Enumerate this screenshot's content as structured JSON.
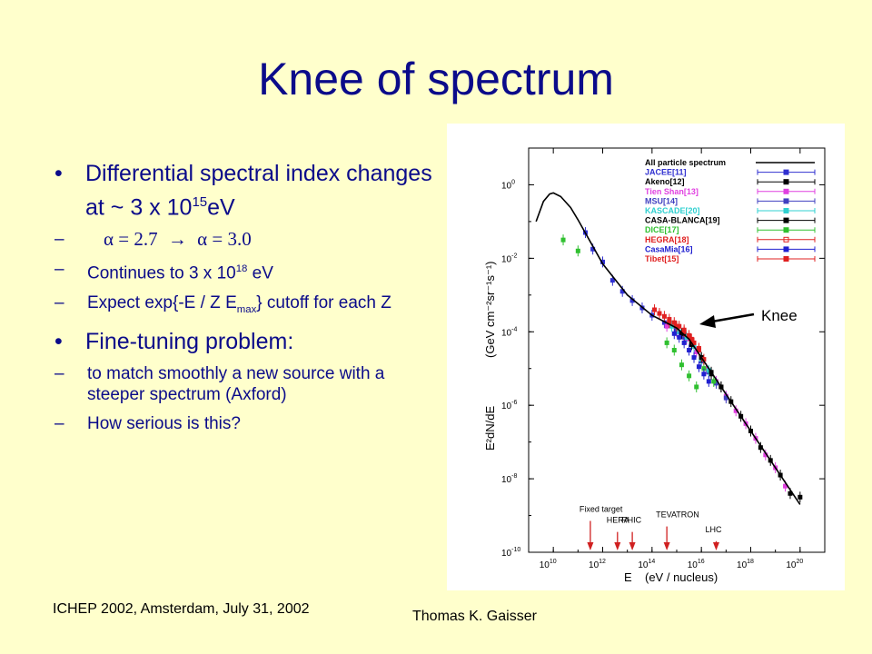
{
  "slide": {
    "title": "Knee of spectrum",
    "bullet1": {
      "text": "Differential spectral index changes at ~ 3 x 10",
      "sup": "15",
      "unit": "eV"
    },
    "sub1": {
      "alpha_from": "α = 2.7",
      "arrow": "→",
      "alpha_to": "α = 3.0"
    },
    "sub2": {
      "pre": "Continues to 3 x 10",
      "sup": "18",
      "post": " eV"
    },
    "sub3": {
      "pre": "Expect exp{-E / Z E",
      "sub": "max",
      "post": "} cutoff for each Z"
    },
    "bullet2": "Fine-tuning problem:",
    "sub4": " to match smoothly a new source with a steeper spectrum (Axford)",
    "sub5": "How serious is this?",
    "bullet_glyph": "•",
    "dash_glyph": "–",
    "footer_left": "ICHEP 2002, Amsterdam, July 31, 2002",
    "footer_right": "Thomas K. Gaisser",
    "knee_label": "Knee"
  },
  "chart_data": {
    "type": "scatter",
    "xlabel": "E",
    "xlabel_unit": "(eV / nucleus)",
    "ylabel": "E²dN/dE",
    "ylabel_unit": "(GeV cm⁻²sr⁻¹s⁻¹)",
    "x_log": true,
    "y_log": true,
    "xlim_exp": [
      9,
      21
    ],
    "ylim_exp": [
      -10,
      1
    ],
    "x_ticks": [
      {
        "exp": 10,
        "label": "10",
        "sup": "10"
      },
      {
        "exp": 12,
        "label": "10",
        "sup": "12"
      },
      {
        "exp": 14,
        "label": "10",
        "sup": "14"
      },
      {
        "exp": 16,
        "label": "10",
        "sup": "16"
      },
      {
        "exp": 18,
        "label": "10",
        "sup": "18"
      },
      {
        "exp": 20,
        "label": "10",
        "sup": "20"
      }
    ],
    "y_ticks": [
      {
        "exp": 0,
        "label": "10",
        "sup": "0"
      },
      {
        "exp": -2,
        "label": "10",
        "sup": "-2"
      },
      {
        "exp": -4,
        "label": "10",
        "sup": "-4"
      },
      {
        "exp": -6,
        "label": "10",
        "sup": "-6"
      },
      {
        "exp": -8,
        "label": "10",
        "sup": "-8"
      },
      {
        "exp": -10,
        "label": "10",
        "sup": "-10"
      }
    ],
    "all_particle_curve": [
      [
        9.3,
        -1.0
      ],
      [
        9.6,
        -0.45
      ],
      [
        9.85,
        -0.25
      ],
      [
        10.0,
        -0.22
      ],
      [
        10.3,
        -0.32
      ],
      [
        10.7,
        -0.62
      ],
      [
        11.0,
        -0.95
      ],
      [
        11.5,
        -1.55
      ],
      [
        12.0,
        -2.15
      ],
      [
        13.0,
        -3.0
      ],
      [
        14.0,
        -3.55
      ],
      [
        15.0,
        -3.9
      ],
      [
        15.5,
        -4.2
      ],
      [
        16.0,
        -4.7
      ],
      [
        16.5,
        -5.2
      ],
      [
        17.0,
        -5.7
      ],
      [
        18.0,
        -6.7
      ],
      [
        19.0,
        -7.7
      ],
      [
        20.0,
        -8.7
      ]
    ],
    "legend": [
      {
        "name": "All particle spectrum",
        "color": "#000000",
        "marker": "line"
      },
      {
        "name": "JACEE[11]",
        "color": "#3030d0",
        "marker": "x"
      },
      {
        "name": "Akeno[12]",
        "color": "#000000",
        "marker": "tri"
      },
      {
        "name": "Tien Shan[13]",
        "color": "#e040e0",
        "marker": "star"
      },
      {
        "name": "MSU[14]",
        "color": "#4040c0",
        "marker": "star"
      },
      {
        "name": "KASCADE[20]",
        "color": "#30d0d0",
        "marker": "star"
      },
      {
        "name": "CASA-BLANCA[19]",
        "color": "#000000",
        "marker": "square"
      },
      {
        "name": "DICE[17]",
        "color": "#30c030",
        "marker": "dot"
      },
      {
        "name": "HEGRA[18]",
        "color": "#e02020",
        "marker": "opensquare"
      },
      {
        "name": "CasaMia[16]",
        "color": "#2020d0",
        "marker": "dot"
      },
      {
        "name": "Tibet[15]",
        "color": "#e02020",
        "marker": "square"
      }
    ],
    "series": [
      {
        "name": "JACEE[11]",
        "color": "#3030d0",
        "points": [
          [
            11.3,
            -1.3
          ],
          [
            11.6,
            -1.75
          ],
          [
            12.0,
            -2.1
          ],
          [
            12.4,
            -2.6
          ],
          [
            12.8,
            -2.9
          ],
          [
            13.2,
            -3.15
          ],
          [
            13.6,
            -3.35
          ],
          [
            14.0,
            -3.55
          ],
          [
            14.5,
            -3.75
          ],
          [
            15.0,
            -3.95
          ]
        ]
      },
      {
        "name": "Akeno[12]",
        "color": "#000000",
        "points": [
          [
            15.3,
            -4.1
          ],
          [
            15.6,
            -4.3
          ],
          [
            16.0,
            -4.7
          ],
          [
            16.4,
            -5.15
          ],
          [
            16.8,
            -5.5
          ],
          [
            17.2,
            -5.9
          ],
          [
            17.6,
            -6.3
          ],
          [
            18.0,
            -6.7
          ],
          [
            18.4,
            -7.15
          ],
          [
            18.8,
            -7.5
          ],
          [
            19.2,
            -7.9
          ],
          [
            19.6,
            -8.4
          ],
          [
            20.0,
            -8.5
          ]
        ]
      },
      {
        "name": "Tien Shan[13]",
        "color": "#e040e0",
        "points": [
          [
            14.6,
            -3.85
          ],
          [
            15.0,
            -4.0
          ],
          [
            15.4,
            -4.2
          ],
          [
            15.8,
            -4.55
          ],
          [
            16.2,
            -5.0
          ],
          [
            16.6,
            -5.35
          ],
          [
            17.0,
            -5.75
          ],
          [
            17.4,
            -6.15
          ],
          [
            17.8,
            -6.5
          ],
          [
            18.2,
            -6.9
          ],
          [
            18.6,
            -7.35
          ],
          [
            19.0,
            -7.7
          ],
          [
            19.4,
            -8.2
          ]
        ]
      },
      {
        "name": "MSU[14]",
        "color": "#4040c0",
        "points": [
          [
            15.0,
            -3.95
          ],
          [
            15.3,
            -4.15
          ],
          [
            15.6,
            -4.35
          ],
          [
            16.0,
            -4.8
          ],
          [
            16.3,
            -5.1
          ],
          [
            16.6,
            -5.4
          ],
          [
            17.0,
            -5.8
          ]
        ]
      },
      {
        "name": "KASCADE[20]",
        "color": "#30d0d0",
        "points": [
          [
            14.8,
            -3.85
          ],
          [
            15.1,
            -4.0
          ],
          [
            15.4,
            -4.15
          ],
          [
            15.7,
            -4.4
          ],
          [
            16.0,
            -4.75
          ],
          [
            16.3,
            -5.05
          ]
        ]
      },
      {
        "name": "CASA-BLANCA[19]",
        "color": "#000000",
        "points": [
          [
            15.2,
            -4.05
          ],
          [
            15.6,
            -4.35
          ],
          [
            16.0,
            -4.7
          ],
          [
            16.4,
            -5.1
          ],
          [
            16.8,
            -5.5
          ]
        ]
      },
      {
        "name": "DICE[17]",
        "color": "#30c030",
        "points": [
          [
            10.4,
            -1.5
          ],
          [
            11.0,
            -1.8
          ],
          [
            14.6,
            -4.3
          ],
          [
            14.9,
            -4.5
          ],
          [
            15.2,
            -4.9
          ],
          [
            15.5,
            -5.2
          ],
          [
            15.8,
            -5.5
          ],
          [
            16.1,
            -5.0
          ],
          [
            16.5,
            -5.35
          ]
        ]
      },
      {
        "name": "HEGRA[18]",
        "color": "#e02020",
        "points": [
          [
            14.7,
            -3.75
          ],
          [
            15.0,
            -3.85
          ],
          [
            15.3,
            -4.0
          ],
          [
            15.6,
            -4.2
          ],
          [
            15.9,
            -4.45
          ]
        ]
      },
      {
        "name": "CasaMia[16]",
        "color": "#2020d0",
        "points": [
          [
            14.9,
            -4.05
          ],
          [
            15.1,
            -4.15
          ],
          [
            15.3,
            -4.3
          ],
          [
            15.5,
            -4.5
          ],
          [
            15.7,
            -4.7
          ],
          [
            15.9,
            -4.95
          ],
          [
            16.1,
            -5.15
          ],
          [
            16.3,
            -5.35
          ]
        ]
      },
      {
        "name": "Tibet[15]",
        "color": "#e02020",
        "points": [
          [
            14.1,
            -3.4
          ],
          [
            14.3,
            -3.5
          ],
          [
            14.5,
            -3.58
          ],
          [
            14.7,
            -3.66
          ],
          [
            14.9,
            -3.75
          ],
          [
            15.1,
            -3.85
          ],
          [
            15.3,
            -3.95
          ],
          [
            15.5,
            -4.1
          ],
          [
            15.7,
            -4.3
          ],
          [
            15.9,
            -4.5
          ],
          [
            16.1,
            -4.75
          ]
        ]
      }
    ],
    "accelerators": [
      {
        "name": "Fixed target",
        "x": 11.5
      },
      {
        "name": "HERA",
        "x": 12.6
      },
      {
        "name": "RHIC",
        "x": 13.2
      },
      {
        "name": "TEVATRON",
        "x": 14.6
      },
      {
        "name": "LHC",
        "x": 16.6
      }
    ],
    "knee_point": [
      15.5,
      -4.15
    ]
  }
}
